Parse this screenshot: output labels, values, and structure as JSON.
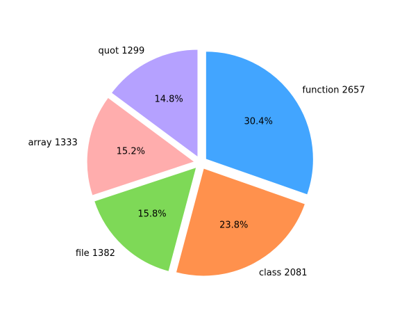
{
  "chart_data": {
    "type": "pie",
    "title": "",
    "start_angle_deg": 90,
    "direction": "clockwise",
    "explode": true,
    "slices": [
      {
        "label": "function 2657",
        "name": "function",
        "value": 2657,
        "percent_label": "30.4%",
        "color": "#42a5ff"
      },
      {
        "label": "class 2081",
        "name": "class",
        "value": 2081,
        "percent_label": "23.8%",
        "color": "#ff914d"
      },
      {
        "label": "file 1382",
        "name": "file",
        "value": 1382,
        "percent_label": "15.8%",
        "color": "#7ed957"
      },
      {
        "label": "array 1333",
        "name": "array",
        "value": 1333,
        "percent_label": "15.2%",
        "color": "#ffadad"
      },
      {
        "label": "quot 1299",
        "name": "quot",
        "value": 1299,
        "percent_label": "14.8%",
        "color": "#b5a1ff"
      }
    ]
  }
}
